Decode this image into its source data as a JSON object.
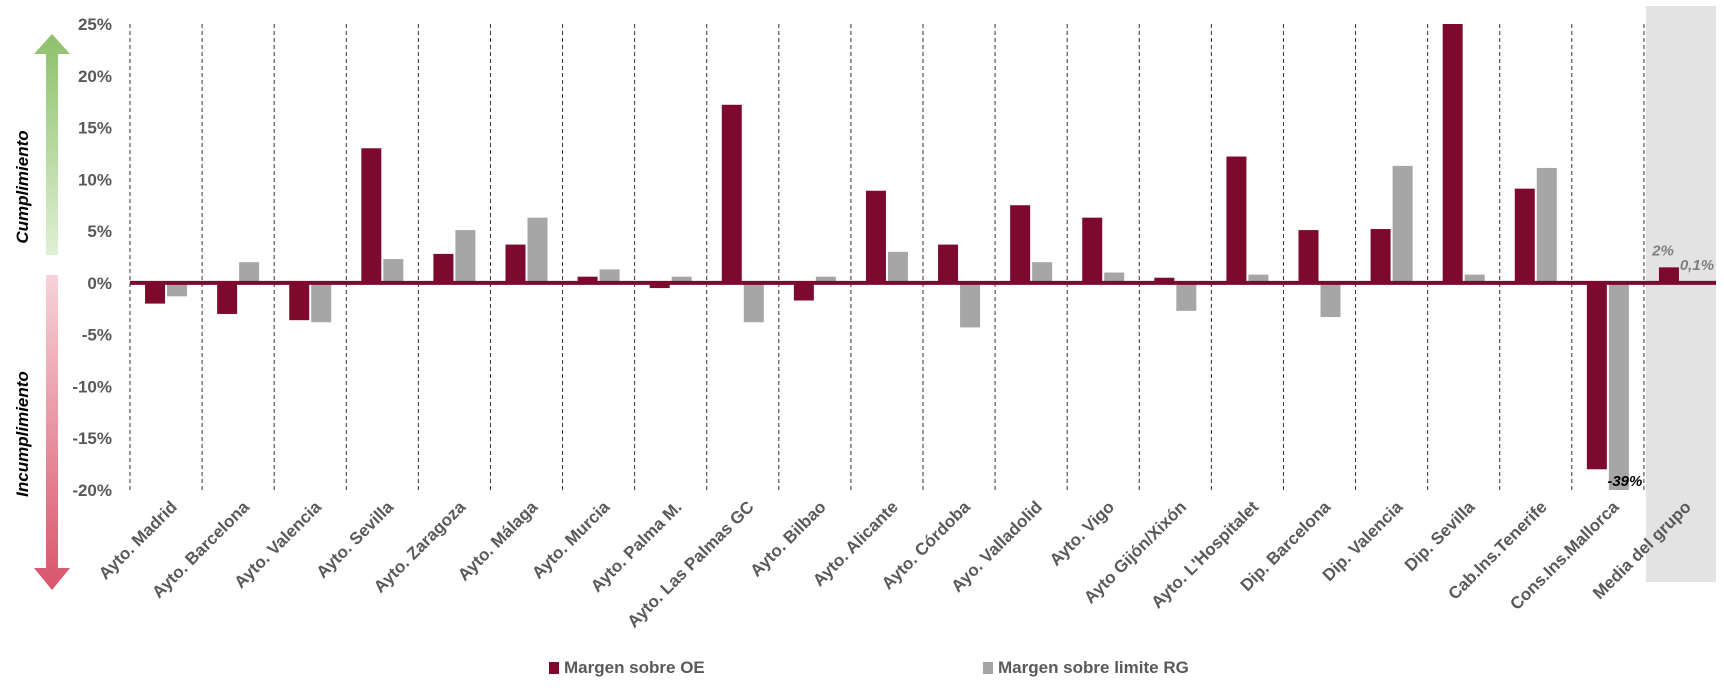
{
  "chart_data": {
    "type": "bar",
    "categories": [
      "Ayto. Madrid",
      "Ayto. Barcelona",
      "Ayto. Valencia",
      "Ayto. Sevilla",
      "Ayto. Zaragoza",
      "Ayto. Málaga",
      "Ayto. Murcia",
      "Ayto. Palma M.",
      "Ayto. Las Palmas GC",
      "Ayto. Bilbao",
      "Ayto. Alicante",
      "Ayto. Córdoba",
      "Ayo. Valladolid",
      "Ayto. Vigo",
      "Ayto Gijón/Xixón",
      "Ayto. L'Hospitalet",
      "Dip. Barcelona",
      "Dip. Valencia",
      "Dip. Sevilla",
      "Cab.Ins.Tenerife",
      "Cons.Ins.Mallorca",
      "Media del grupo"
    ],
    "series": [
      {
        "name": "Margen sobre OE",
        "color": "#7d0a2e",
        "values": [
          -2.0,
          -3.0,
          -3.6,
          13.0,
          2.8,
          3.7,
          0.6,
          -0.5,
          17.2,
          -1.7,
          8.9,
          3.7,
          7.5,
          6.3,
          0.5,
          12.2,
          5.1,
          5.2,
          25,
          9.1,
          -18,
          1.5
        ],
        "value_labels": [
          null,
          null,
          null,
          null,
          null,
          null,
          null,
          null,
          null,
          null,
          null,
          null,
          null,
          null,
          null,
          null,
          null,
          null,
          null,
          null,
          null,
          "2%"
        ]
      },
      {
        "name": "Margen sobre limite RG",
        "color": "#a6a6a6",
        "values": [
          -1.3,
          2.0,
          -3.8,
          2.3,
          5.1,
          6.3,
          1.3,
          0.6,
          -3.8,
          0.6,
          3.0,
          -4.3,
          2.0,
          1.0,
          -2.7,
          0.8,
          -3.3,
          11.3,
          0.8,
          11.1,
          -39,
          0.1
        ],
        "value_labels": [
          null,
          null,
          null,
          null,
          null,
          null,
          null,
          null,
          null,
          null,
          null,
          null,
          null,
          null,
          null,
          null,
          null,
          null,
          null,
          null,
          "-39%",
          "0,1%"
        ]
      }
    ],
    "ylim": [
      -20,
      25
    ],
    "yticks": [
      {
        "value": -20,
        "label": "-20%"
      },
      {
        "value": -15,
        "label": "-15%"
      },
      {
        "value": -10,
        "label": "-10%"
      },
      {
        "value": -5,
        "label": "-5%"
      },
      {
        "value": 0,
        "label": "0%"
      },
      {
        "value": 5,
        "label": "5%"
      },
      {
        "value": 10,
        "label": "10%"
      },
      {
        "value": 15,
        "label": "15%"
      },
      {
        "value": 20,
        "label": "20%"
      },
      {
        "value": 25,
        "label": "25%"
      }
    ],
    "y_labels": [
      "Cumplimiento",
      "Incumplimiento"
    ]
  }
}
